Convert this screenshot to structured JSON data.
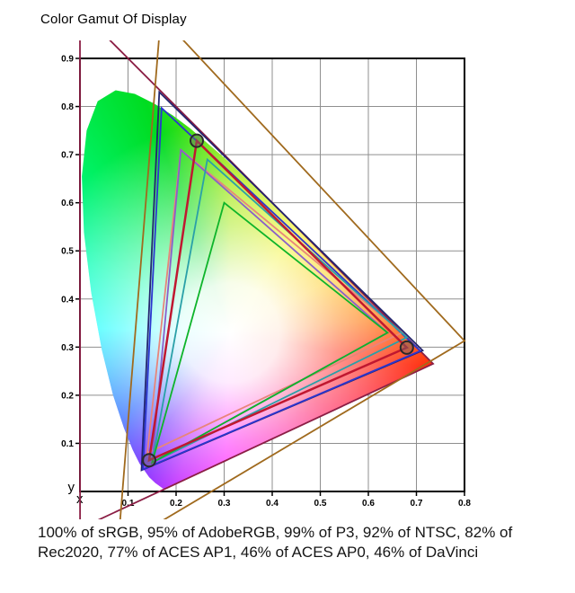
{
  "title": "Color Gamut Of Display",
  "summary_lines": [
    "100% of sRGB, 95% of AdobeRGB, 99% of P3, 92% of NTSC, 82% of",
    "Rec2020, 77% of ACES AP1, 46% of ACES AP0, 46% of DaVinci"
  ],
  "chart_data": {
    "type": "area",
    "title": "Color Gamut Of Display",
    "xlabel": "x",
    "ylabel": "y",
    "xlim": [
      0,
      0.8
    ],
    "ylim": [
      0,
      0.9
    ],
    "x_ticks": [
      0.1,
      0.2,
      0.3,
      0.4,
      0.5,
      0.6,
      0.7,
      0.8
    ],
    "y_ticks": [
      0.1,
      0.2,
      0.3,
      0.4,
      0.5,
      0.6,
      0.7,
      0.8,
      0.9
    ],
    "grid": true,
    "legend_position": "none",
    "spectral_locus": [
      [
        0.1741,
        0.005
      ],
      [
        0.1566,
        0.0177
      ],
      [
        0.144,
        0.0297
      ],
      [
        0.1241,
        0.0578
      ],
      [
        0.1096,
        0.0868
      ],
      [
        0.0913,
        0.1327
      ],
      [
        0.0687,
        0.2007
      ],
      [
        0.0454,
        0.295
      ],
      [
        0.0235,
        0.4127
      ],
      [
        0.0082,
        0.5384
      ],
      [
        0.0039,
        0.6548
      ],
      [
        0.0139,
        0.7502
      ],
      [
        0.0369,
        0.8112
      ],
      [
        0.0743,
        0.8338
      ],
      [
        0.1142,
        0.8262
      ],
      [
        0.1547,
        0.8059
      ],
      [
        0.1929,
        0.7816
      ],
      [
        0.2296,
        0.7543
      ],
      [
        0.3016,
        0.6923
      ],
      [
        0.3731,
        0.6245
      ],
      [
        0.4441,
        0.5547
      ],
      [
        0.5125,
        0.4866
      ],
      [
        0.5752,
        0.4242
      ],
      [
        0.627,
        0.3725
      ],
      [
        0.6658,
        0.334
      ],
      [
        0.6915,
        0.3083
      ],
      [
        0.714,
        0.2859
      ],
      [
        0.7347,
        0.2653
      ]
    ],
    "gamuts": [
      {
        "name": "ACES AP0",
        "color": "#8b1e45",
        "coverage_percent": 46,
        "vertices": [
          [
            0.7347,
            0.2653
          ],
          [
            0.0,
            1.0
          ],
          [
            0.0001,
            -0.077
          ]
        ]
      },
      {
        "name": "DaVinci",
        "color": "#a06a1e",
        "coverage_percent": 46,
        "vertices": [
          [
            0.8,
            0.313
          ],
          [
            0.1682,
            0.9877
          ],
          [
            0.079,
            -0.1155
          ]
        ]
      },
      {
        "name": "ACES AP1",
        "color": "#23256e",
        "coverage_percent": 77,
        "vertices": [
          [
            0.713,
            0.293
          ],
          [
            0.165,
            0.83
          ],
          [
            0.128,
            0.044
          ]
        ]
      },
      {
        "name": "Rec2020",
        "color": "#2b35cf",
        "coverage_percent": 82,
        "vertices": [
          [
            0.708,
            0.292
          ],
          [
            0.17,
            0.797
          ],
          [
            0.131,
            0.046
          ]
        ]
      },
      {
        "name": "NTSC",
        "color": "#e8857a",
        "coverage_percent": 92,
        "vertices": [
          [
            0.67,
            0.33
          ],
          [
            0.21,
            0.71
          ],
          [
            0.14,
            0.08
          ]
        ]
      },
      {
        "name": "AdobeRGB",
        "color": "#8a5fc9",
        "coverage_percent": 95,
        "vertices": [
          [
            0.64,
            0.33
          ],
          [
            0.21,
            0.71
          ],
          [
            0.15,
            0.06
          ]
        ]
      },
      {
        "name": "P3",
        "color": "#2aa0a8",
        "coverage_percent": 99,
        "vertices": [
          [
            0.68,
            0.32
          ],
          [
            0.265,
            0.69
          ],
          [
            0.15,
            0.06
          ]
        ]
      },
      {
        "name": "sRGB",
        "color": "#0eb42a",
        "coverage_percent": 100,
        "vertices": [
          [
            0.64,
            0.33
          ],
          [
            0.3,
            0.6
          ],
          [
            0.15,
            0.06
          ]
        ]
      }
    ],
    "display_gamut": {
      "name": "Display",
      "color": "#c01830",
      "marker": "circle",
      "vertices": [
        [
          0.68,
          0.299
        ],
        [
          0.243,
          0.729
        ],
        [
          0.144,
          0.065
        ]
      ]
    }
  }
}
